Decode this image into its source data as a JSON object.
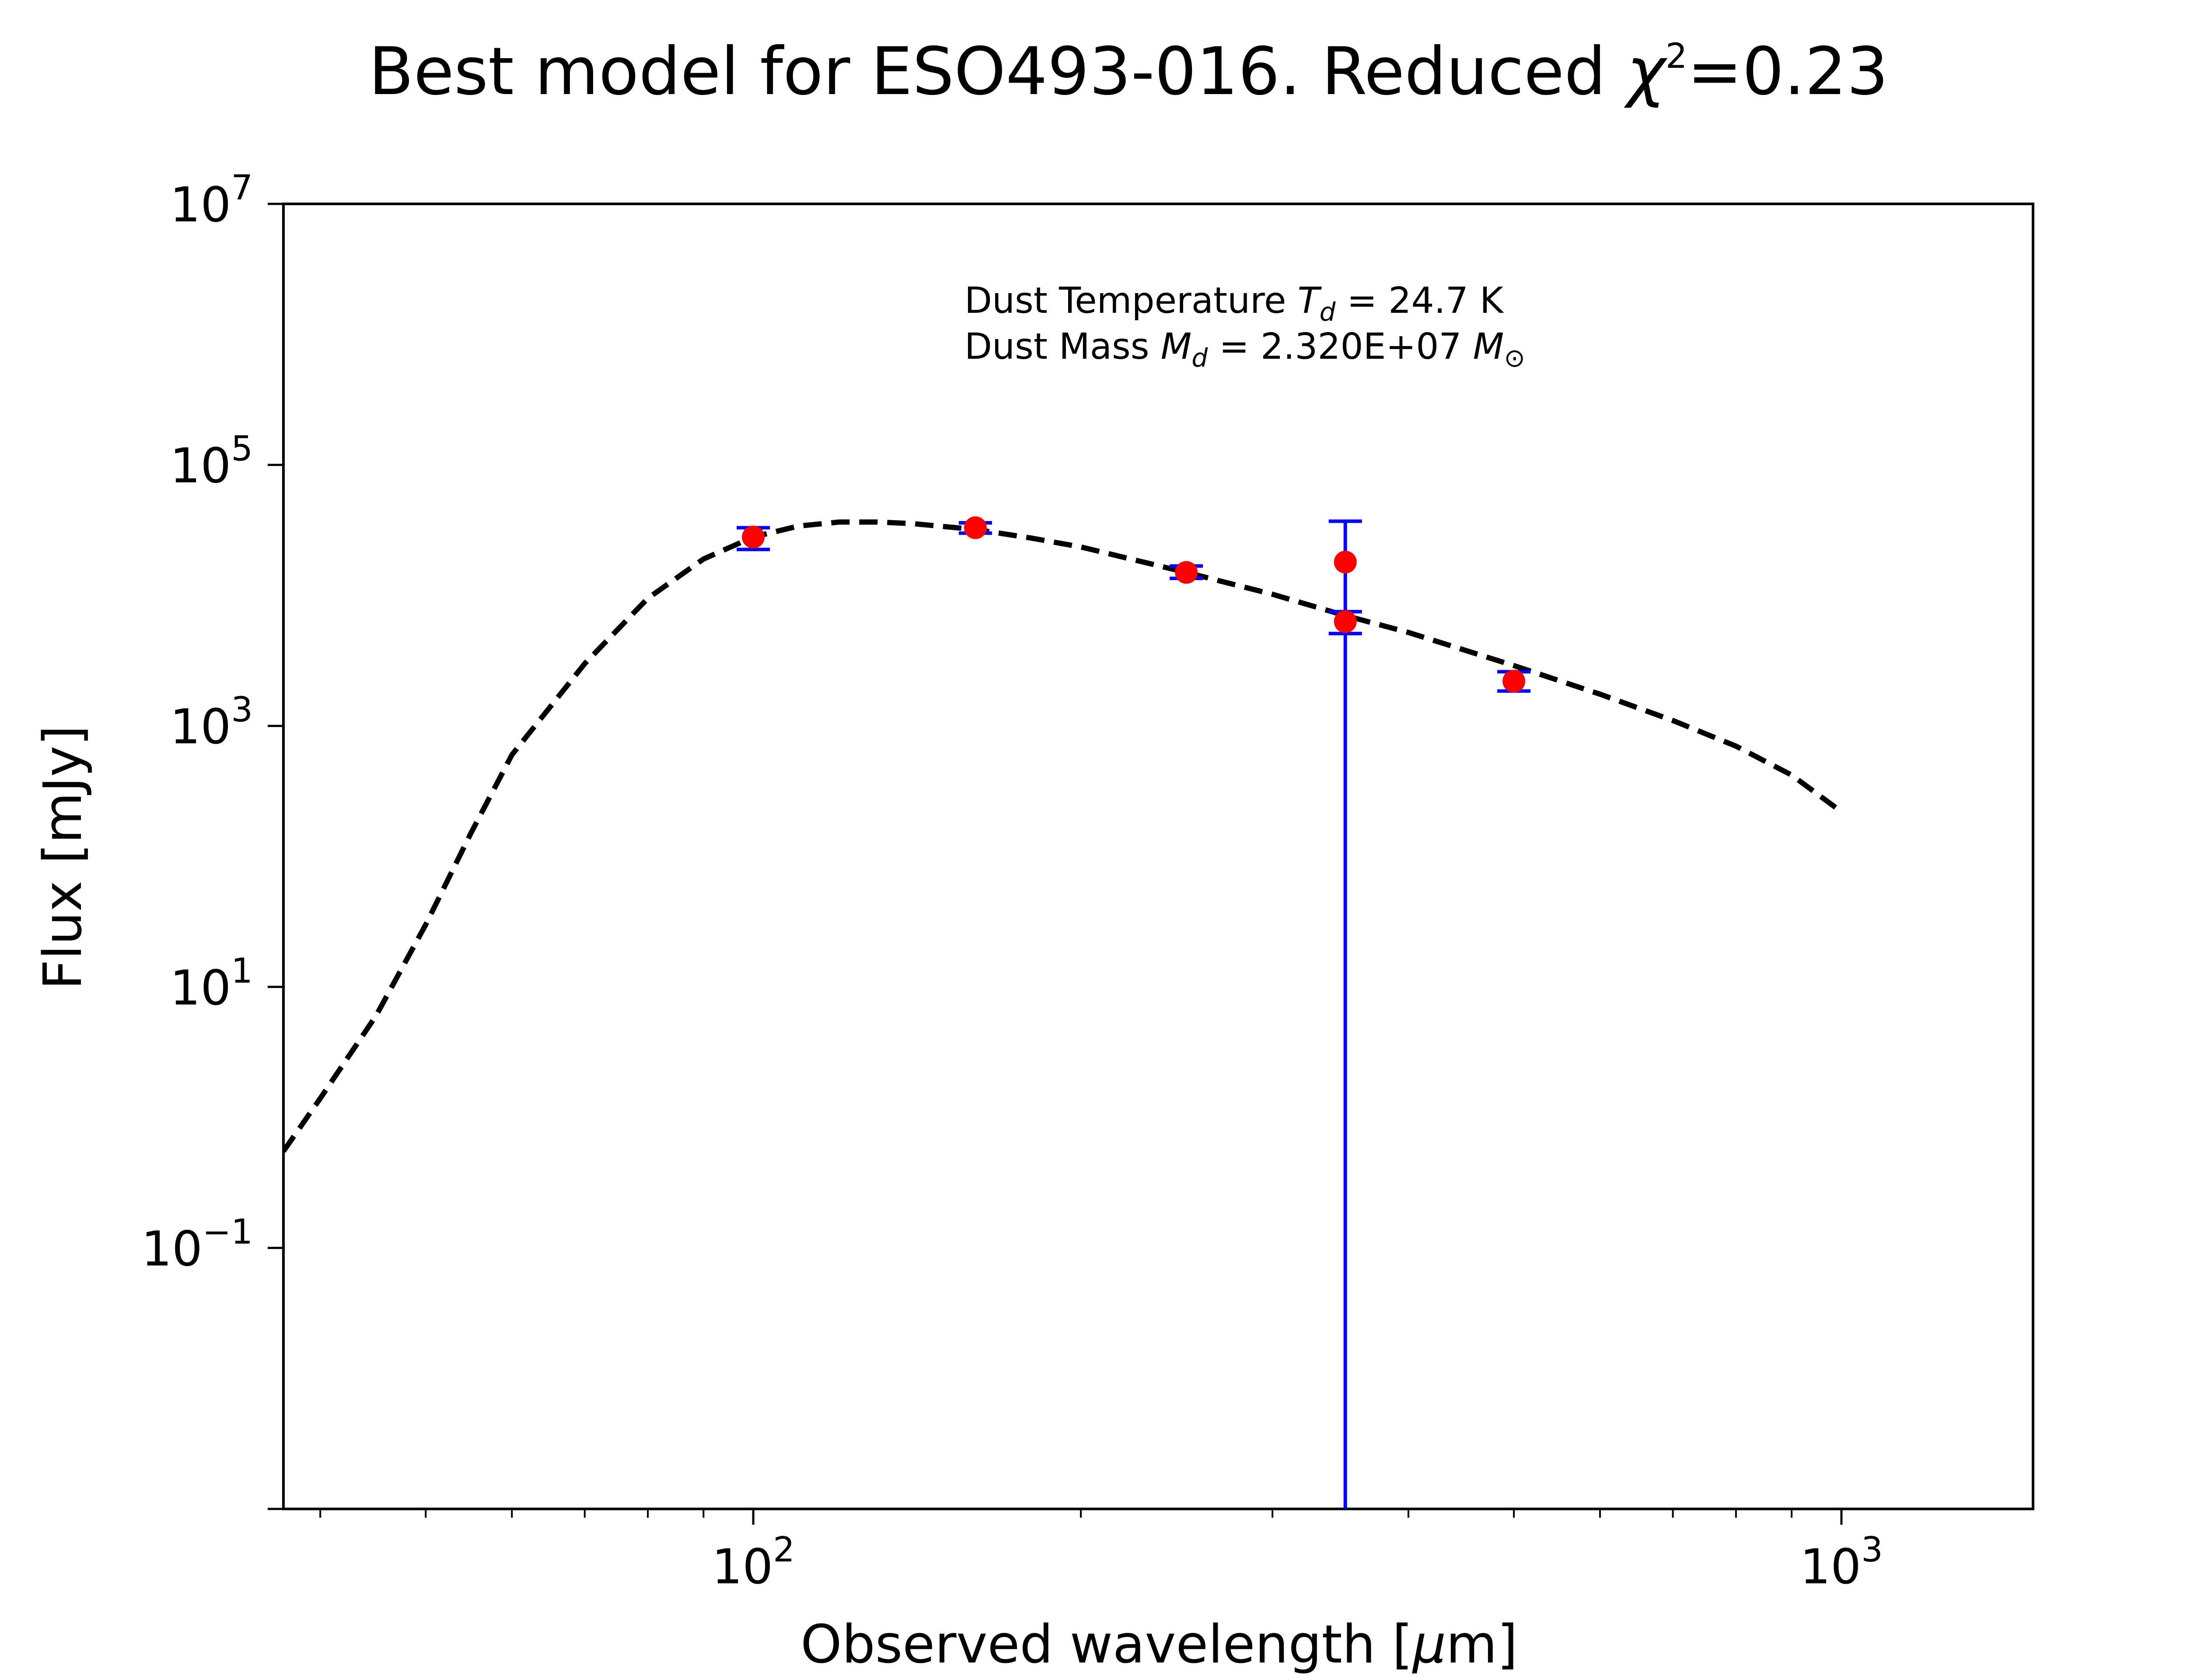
{
  "chart_data": {
    "type": "scatter",
    "title": "Best model for ESO493-016. Reduced χ²=0.23",
    "title_parts": {
      "main": "Best model for ESO493-016. Reduced ",
      "chi": "χ",
      "sup": "2",
      "tail": "=0.23"
    },
    "xlabel": "Observed wavelength [μm]",
    "xlabel_parts": {
      "main": "Observed wavelength [",
      "mu": "μ",
      "tail": "m]"
    },
    "ylabel": "Flux [mJy]",
    "xscale": "log",
    "yscale": "log",
    "xlim": [
      37,
      1500
    ],
    "ylim": [
      0.001,
      10000000
    ],
    "grid": false,
    "x_ticks": [
      {
        "value": 100,
        "base": "10",
        "exp": "2"
      },
      {
        "value": 1000,
        "base": "10",
        "exp": "3"
      }
    ],
    "y_ticks": [
      {
        "value": 0.1,
        "base": "10",
        "exp": "−1"
      },
      {
        "value": 10,
        "base": "10",
        "exp": "1"
      },
      {
        "value": 1000,
        "base": "10",
        "exp": "3"
      },
      {
        "value": 100000,
        "base": "10",
        "exp": "5"
      },
      {
        "value": 10000000,
        "base": "10",
        "exp": "7"
      }
    ],
    "annotations": {
      "line1": {
        "prefix": "Dust Temperature ",
        "sym": "T",
        "sub": "d",
        "suffix": " = 24.7 K"
      },
      "line2": {
        "prefix": "Dust Mass ",
        "sym": "M",
        "sub": "d",
        "mid": " = 2.320E+07 ",
        "sym2": "M",
        "sub2": "⊙"
      }
    },
    "series": [
      {
        "style": "dashed-line",
        "color": "#000000",
        "x": [
          37,
          40,
          45,
          50,
          55,
          60,
          70,
          80,
          90,
          100,
          110,
          120,
          130,
          140,
          160,
          180,
          200,
          250,
          300,
          350,
          400,
          500,
          600,
          700,
          800,
          900,
          1000
        ],
        "y": [
          0.55,
          1.4,
          6,
          30,
          150,
          600,
          3000,
          9500,
          19000,
          28000,
          34000,
          36500,
          36500,
          35500,
          32000,
          27500,
          23500,
          15000,
          10200,
          7000,
          5200,
          2900,
          1750,
          1100,
          700,
          420,
          220
        ]
      },
      {
        "style": "errorbar-points",
        "marker_color": "#ff0000",
        "error_color": "#0000ff",
        "points": [
          {
            "x": 100,
            "y": 28000,
            "y_low": 22500,
            "y_high": 33000
          },
          {
            "x": 160,
            "y": 33000,
            "y_low": 30000,
            "y_high": 36000
          },
          {
            "x": 250,
            "y": 15000,
            "y_low": 13500,
            "y_high": 16800
          },
          {
            "x": 350,
            "y": 18000,
            "y_low": 0.001,
            "y_high": 37000
          },
          {
            "x": 350,
            "y": 6300,
            "y_low": 5100,
            "y_high": 7500
          },
          {
            "x": 500,
            "y": 2200,
            "y_low": 1850,
            "y_high": 2600
          }
        ]
      }
    ]
  }
}
